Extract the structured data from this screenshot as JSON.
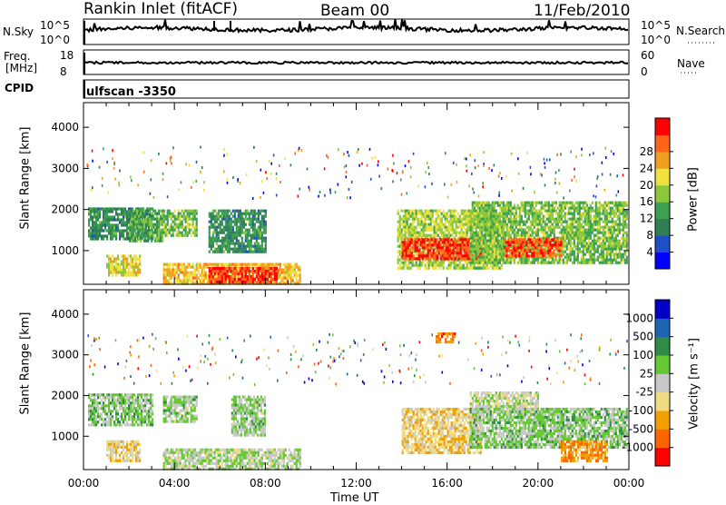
{
  "header": {
    "station": "Rankin Inlet (fitACF)",
    "beam": "Beam 00",
    "date": "11/Feb/2010"
  },
  "panels": {
    "nsky": {
      "label": "N.Sky",
      "ticks_left": [
        "10^5",
        "10^0"
      ],
      "ticks_right": [
        "10^5",
        "10^0"
      ],
      "right_label": "N.Search"
    },
    "freq": {
      "label": "Freq.",
      "unit": "[MHz]",
      "ticks_left": [
        "18",
        "8"
      ],
      "ticks_right": [
        "60",
        "0"
      ],
      "right_label": "Nave"
    },
    "cpid": {
      "label": "CPID",
      "value": "ulfscan -3350"
    }
  },
  "colors": {
    "power": [
      "#0000ff",
      "#1e50c8",
      "#2e7f55",
      "#3ca050",
      "#8cc83c",
      "#f0e040",
      "#f0a020",
      "#ff6418",
      "#ff0000"
    ],
    "velocity": [
      "#ff0000",
      "#ff6400",
      "#f0a000",
      "#f0dc80",
      "#c8c8c8",
      "#64c832",
      "#2e8c46",
      "#1e64b4",
      "#0000c8"
    ]
  },
  "chart_data": [
    {
      "type": "heatmap",
      "title": "Power",
      "xlabel": "",
      "ylabel": "Slant Range [km]",
      "x_ticks": [
        "00:00",
        "04:00",
        "08:00",
        "12:00",
        "16:00",
        "20:00",
        "00:00"
      ],
      "y_ticks": [
        1000,
        2000,
        3000,
        4000
      ],
      "ylim": [
        180,
        4600
      ],
      "xlim_hours": [
        0,
        24
      ],
      "colorbar": {
        "label": "Power [dB]",
        "ticks": [
          "4",
          "8",
          "12",
          "16",
          "20",
          "24",
          "28"
        ],
        "range": [
          0,
          30
        ]
      },
      "regions": [
        {
          "t": [
            0.2,
            3.0
          ],
          "r": [
            1300,
            2050
          ],
          "value": 10
        },
        {
          "t": [
            1.0,
            2.5
          ],
          "r": [
            400,
            900
          ],
          "value": 18
        },
        {
          "t": [
            2.0,
            3.5
          ],
          "r": [
            1250,
            2000
          ],
          "value": 12
        },
        {
          "t": [
            3.5,
            5.0
          ],
          "r": [
            1350,
            2000
          ],
          "value": 14
        },
        {
          "t": [
            3.5,
            9.5
          ],
          "r": [
            200,
            700
          ],
          "value": 20
        },
        {
          "t": [
            5.5,
            8.5
          ],
          "r": [
            250,
            600
          ],
          "value": 27
        },
        {
          "t": [
            5.5,
            8.0
          ],
          "r": [
            1000,
            2000
          ],
          "value": 10
        },
        {
          "t": [
            13.8,
            18.5
          ],
          "r": [
            600,
            2000
          ],
          "value": 16
        },
        {
          "t": [
            14.0,
            17.5
          ],
          "r": [
            800,
            1300
          ],
          "value": 27
        },
        {
          "t": [
            17.0,
            23.9
          ],
          "r": [
            700,
            2200
          ],
          "value": 14
        },
        {
          "t": [
            18.5,
            21.0
          ],
          "r": [
            900,
            1300
          ],
          "value": 26
        }
      ]
    },
    {
      "type": "heatmap",
      "title": "Velocity",
      "xlabel": "Time UT",
      "ylabel": "Slant Range [km]",
      "x_ticks": [
        "00:00",
        "04:00",
        "08:00",
        "12:00",
        "16:00",
        "20:00",
        "00:00"
      ],
      "y_ticks": [
        1000,
        2000,
        3000,
        4000
      ],
      "ylim": [
        180,
        4600
      ],
      "xlim_hours": [
        0,
        24
      ],
      "colorbar": {
        "label": "Velocity [m s⁻¹]",
        "ticks": [
          "1000",
          "500",
          "100",
          "25",
          "-25",
          "-100",
          "-500",
          "-1000"
        ],
        "range": [
          -1200,
          1200
        ]
      },
      "regions": [
        {
          "t": [
            0.2,
            3.0
          ],
          "r": [
            1300,
            2050
          ],
          "value": 200
        },
        {
          "t": [
            1.0,
            2.5
          ],
          "r": [
            400,
            900
          ],
          "value": -300
        },
        {
          "t": [
            3.5,
            5.0
          ],
          "r": [
            1350,
            2000
          ],
          "value": 150
        },
        {
          "t": [
            3.5,
            9.5
          ],
          "r": [
            200,
            700
          ],
          "value": 80
        },
        {
          "t": [
            6.5,
            8.0
          ],
          "r": [
            1000,
            2000
          ],
          "value": 150
        },
        {
          "t": [
            14.0,
            17.5
          ],
          "r": [
            600,
            1700
          ],
          "value": -300
        },
        {
          "t": [
            17.0,
            20.0
          ],
          "r": [
            1600,
            2100
          ],
          "value": 0
        },
        {
          "t": [
            17.0,
            23.9
          ],
          "r": [
            700,
            1700
          ],
          "value": 200
        },
        {
          "t": [
            21.0,
            23.0
          ],
          "r": [
            400,
            900
          ],
          "value": -600
        },
        {
          "t": [
            15.5,
            16.3
          ],
          "r": [
            3300,
            3550
          ],
          "value": -700
        }
      ]
    }
  ]
}
